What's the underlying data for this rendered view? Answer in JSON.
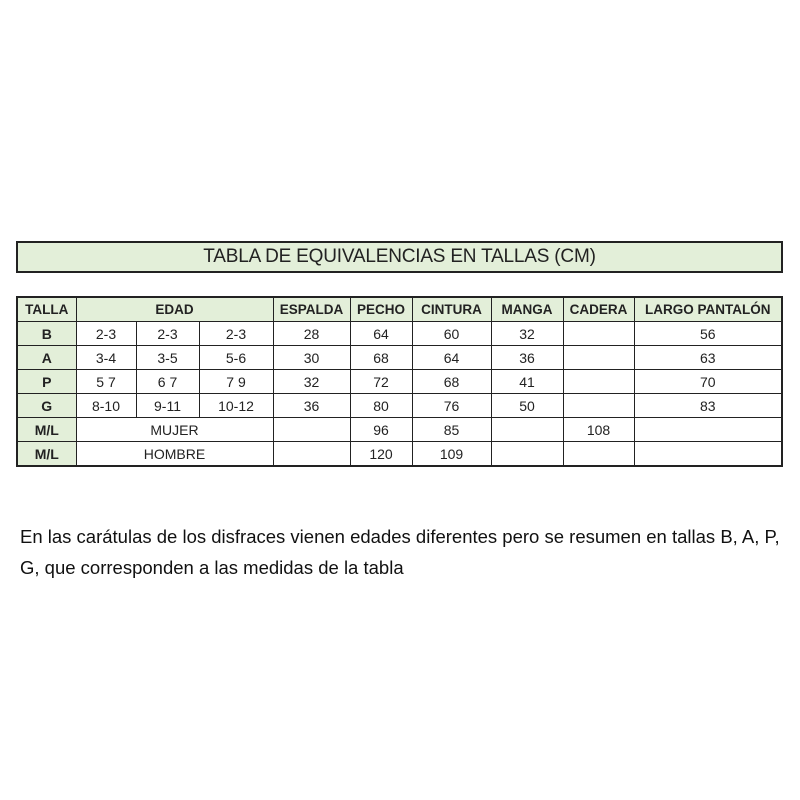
{
  "title": "TABLA DE EQUIVALENCIAS EN TALLAS (CM)",
  "headers": {
    "talla": "TALLA",
    "edad": "EDAD",
    "espalda": "ESPALDA",
    "pecho": "PECHO",
    "cintura": "CINTURA",
    "manga": "MANGA",
    "cadera": "CADERA",
    "largo": "LARGO PANTALÓN"
  },
  "rows": [
    {
      "talla": "B",
      "edad": [
        "2-3",
        "2-3",
        "2-3"
      ],
      "espalda": "28",
      "pecho": "64",
      "cintura": "60",
      "manga": "32",
      "cadera": "",
      "largo": "56"
    },
    {
      "talla": "A",
      "edad": [
        "3-4",
        "3-5",
        "5-6"
      ],
      "espalda": "30",
      "pecho": "68",
      "cintura": "64",
      "manga": "36",
      "cadera": "",
      "largo": "63"
    },
    {
      "talla": "P",
      "edad": [
        "5 7",
        "6 7",
        "7 9"
      ],
      "espalda": "32",
      "pecho": "72",
      "cintura": "68",
      "manga": "41",
      "cadera": "",
      "largo": "70"
    },
    {
      "talla": "G",
      "edad": [
        "8-10",
        "9-11",
        "10-12"
      ],
      "espalda": "36",
      "pecho": "80",
      "cintura": "76",
      "manga": "50",
      "cadera": "",
      "largo": "83"
    },
    {
      "talla": "M/L",
      "edad_merged": "MUJER",
      "espalda": "",
      "pecho": "96",
      "cintura": "85",
      "manga": "",
      "cadera": "108",
      "largo": ""
    },
    {
      "talla": "M/L",
      "edad_merged": "HOMBRE",
      "espalda": "",
      "pecho": "120",
      "cintura": "109",
      "manga": "",
      "cadera": "",
      "largo": ""
    }
  ],
  "note": "En las carátulas de los disfraces vienen edades diferentes pero se resumen en tallas B, A, P, G, que corresponden a las medidas de la tabla",
  "colors": {
    "header_bg": "#e3efd9",
    "border": "#222222"
  }
}
